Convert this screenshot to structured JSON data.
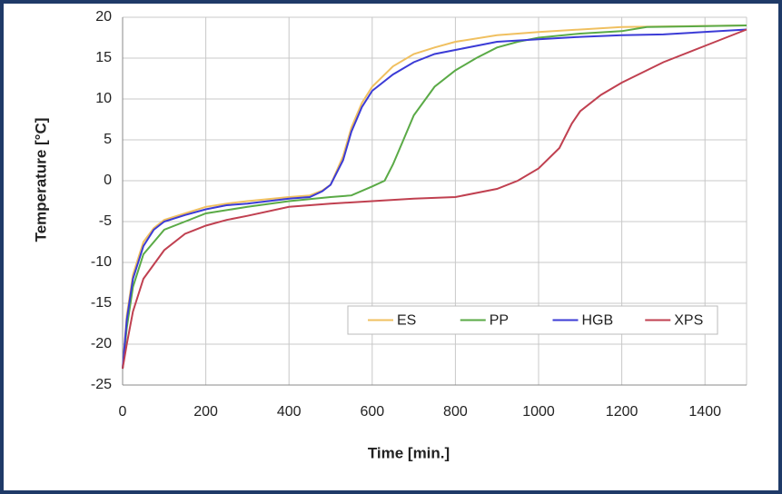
{
  "chart_data": {
    "type": "line",
    "x_label": "Time [min.]",
    "y_label": "Temperature [°C]",
    "xlim": [
      0,
      1500
    ],
    "xticks": [
      0,
      200,
      400,
      600,
      800,
      1000,
      1200,
      1400
    ],
    "ylim": [
      -25,
      20
    ],
    "yticks": [
      -25,
      -20,
      -15,
      -10,
      -5,
      0,
      5,
      10,
      15,
      20
    ],
    "grid": true,
    "legend": "bottom-right",
    "series": [
      {
        "name": "ES",
        "color": "#f0c060",
        "x": [
          0,
          10,
          25,
          50,
          75,
          100,
          150,
          200,
          250,
          300,
          400,
          450,
          480,
          500,
          530,
          550,
          575,
          600,
          650,
          700,
          750,
          800,
          900,
          1000,
          1200,
          1500
        ],
        "values": [
          -23,
          -16.5,
          -11.5,
          -7.5,
          -5.8,
          -4.8,
          -4,
          -3.2,
          -2.8,
          -2.5,
          -2,
          -1.8,
          -1.2,
          -0.5,
          3,
          6.5,
          9.5,
          11.5,
          14,
          15.5,
          16.3,
          17,
          17.8,
          18.2,
          18.8,
          19
        ]
      },
      {
        "name": "PP",
        "color": "#5aaa46",
        "x": [
          0,
          10,
          25,
          50,
          100,
          150,
          200,
          300,
          400,
          500,
          550,
          600,
          630,
          650,
          675,
          700,
          750,
          800,
          850,
          900,
          950,
          1000,
          1100,
          1200,
          1260,
          1500
        ],
        "values": [
          -23,
          -18,
          -13,
          -9,
          -6,
          -5,
          -4,
          -3.2,
          -2.5,
          -2,
          -1.8,
          -0.7,
          0,
          2,
          5,
          8,
          11.5,
          13.5,
          15,
          16.3,
          17,
          17.5,
          18,
          18.3,
          18.8,
          19
        ]
      },
      {
        "name": "HGB",
        "color": "#3b3bd6",
        "x": [
          0,
          10,
          25,
          50,
          75,
          100,
          150,
          200,
          250,
          300,
          400,
          450,
          480,
          500,
          530,
          550,
          575,
          600,
          650,
          700,
          750,
          800,
          850,
          900,
          1000,
          1100,
          1200,
          1300,
          1500
        ],
        "values": [
          -23,
          -17,
          -12,
          -8,
          -6,
          -5,
          -4.2,
          -3.5,
          -3,
          -2.8,
          -2.2,
          -2,
          -1.3,
          -0.5,
          2.5,
          6,
          9,
          11,
          13,
          14.5,
          15.5,
          16,
          16.5,
          17,
          17.3,
          17.6,
          17.8,
          17.9,
          18.5
        ]
      },
      {
        "name": "XPS",
        "color": "#c04050",
        "x": [
          0,
          10,
          25,
          50,
          100,
          150,
          200,
          250,
          300,
          400,
          500,
          600,
          700,
          800,
          900,
          950,
          1000,
          1050,
          1080,
          1100,
          1150,
          1200,
          1300,
          1400,
          1500
        ],
        "values": [
          -23,
          -20,
          -16,
          -12,
          -8.5,
          -6.5,
          -5.5,
          -4.8,
          -4.3,
          -3.2,
          -2.8,
          -2.5,
          -2.2,
          -2,
          -1,
          0,
          1.5,
          4,
          7,
          8.5,
          10.5,
          12,
          14.5,
          16.5,
          18.5
        ]
      }
    ]
  }
}
